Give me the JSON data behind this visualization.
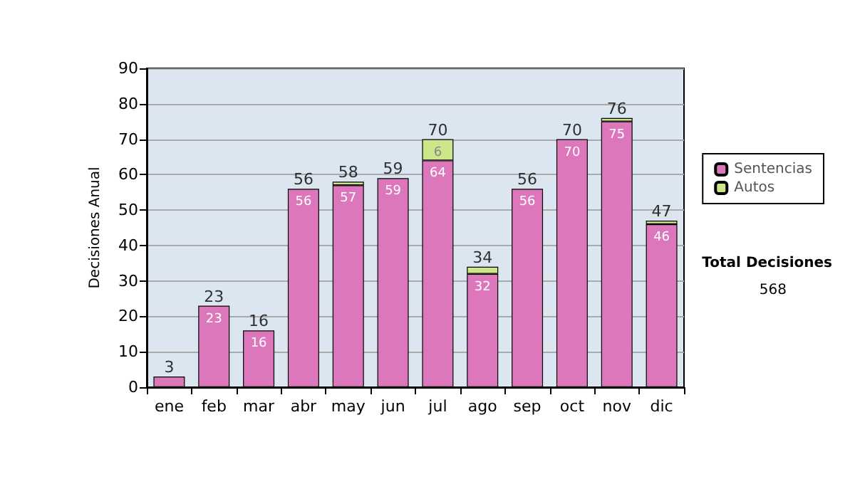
{
  "chart_data": {
    "type": "bar",
    "ylabel": "Decisiones Anual",
    "categories": [
      "ene",
      "feb",
      "mar",
      "abr",
      "may",
      "jun",
      "jul",
      "ago",
      "sep",
      "oct",
      "nov",
      "dic"
    ],
    "stacked": true,
    "series": [
      {
        "name": "Sentencias",
        "color": "#dd77bb",
        "values": [
          3,
          23,
          16,
          56,
          57,
          59,
          64,
          32,
          56,
          70,
          75,
          46
        ],
        "value_labels": [
          null,
          "23",
          "16",
          "56",
          "57",
          "59",
          "64",
          "32",
          "56",
          "70",
          "75",
          "46"
        ]
      },
      {
        "name": "Autos",
        "color": "#cce68a",
        "values": [
          null,
          null,
          null,
          null,
          1,
          null,
          6,
          2,
          null,
          null,
          1,
          1
        ],
        "value_labels": [
          null,
          null,
          null,
          null,
          null,
          null,
          "6",
          null,
          null,
          null,
          null,
          null
        ]
      }
    ],
    "totals": [
      "3",
      "23",
      "16",
      "56",
      "58",
      "59",
      "70",
      "34",
      "56",
      "70",
      "76",
      "47"
    ],
    "ylim": [
      0,
      90
    ],
    "yticks": [
      0,
      10,
      20,
      30,
      40,
      50,
      60,
      70,
      80,
      90
    ],
    "grid": "y",
    "legend": "right",
    "annotations": [
      "Total Decisiones",
      "568"
    ]
  }
}
